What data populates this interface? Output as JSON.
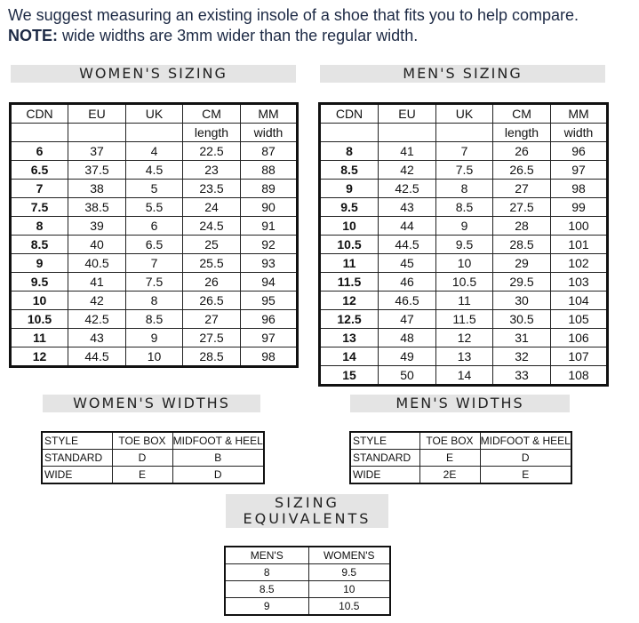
{
  "intro": {
    "line1": "We suggest measuring an existing insole of a shoe that fits you to help compare.",
    "note_label": "NOTE:",
    "note_text": "wide widths are 3mm wider than the regular width."
  },
  "womens_sizing": {
    "title": "WOMEN'S SIZING",
    "header": [
      "CDN",
      "EU",
      "UK",
      "CM",
      "MM"
    ],
    "subheader": [
      "length",
      "width"
    ],
    "rows": [
      [
        "6",
        "37",
        "4",
        "22.5",
        "87"
      ],
      [
        "6.5",
        "37.5",
        "4.5",
        "23",
        "88"
      ],
      [
        "7",
        "38",
        "5",
        "23.5",
        "89"
      ],
      [
        "7.5",
        "38.5",
        "5.5",
        "24",
        "90"
      ],
      [
        "8",
        "39",
        "6",
        "24.5",
        "91"
      ],
      [
        "8.5",
        "40",
        "6.5",
        "25",
        "92"
      ],
      [
        "9",
        "40.5",
        "7",
        "25.5",
        "93"
      ],
      [
        "9.5",
        "41",
        "7.5",
        "26",
        "94"
      ],
      [
        "10",
        "42",
        "8",
        "26.5",
        "95"
      ],
      [
        "10.5",
        "42.5",
        "8.5",
        "27",
        "96"
      ],
      [
        "11",
        "43",
        "9",
        "27.5",
        "97"
      ],
      [
        "12",
        "44.5",
        "10",
        "28.5",
        "98"
      ]
    ]
  },
  "mens_sizing": {
    "title": "MEN'S SIZING",
    "header": [
      "CDN",
      "EU",
      "UK",
      "CM",
      "MM"
    ],
    "subheader": [
      "length",
      "width"
    ],
    "rows": [
      [
        "8",
        "41",
        "7",
        "26",
        "96"
      ],
      [
        "8.5",
        "42",
        "7.5",
        "26.5",
        "97"
      ],
      [
        "9",
        "42.5",
        "8",
        "27",
        "98"
      ],
      [
        "9.5",
        "43",
        "8.5",
        "27.5",
        "99"
      ],
      [
        "10",
        "44",
        "9",
        "28",
        "100"
      ],
      [
        "10.5",
        "44.5",
        "9.5",
        "28.5",
        "101"
      ],
      [
        "11",
        "45",
        "10",
        "29",
        "102"
      ],
      [
        "11.5",
        "46",
        "10.5",
        "29.5",
        "103"
      ],
      [
        "12",
        "46.5",
        "11",
        "30",
        "104"
      ],
      [
        "12.5",
        "47",
        "11.5",
        "30.5",
        "105"
      ],
      [
        "13",
        "48",
        "12",
        "31",
        "106"
      ],
      [
        "14",
        "49",
        "13",
        "32",
        "107"
      ],
      [
        "15",
        "50",
        "14",
        "33",
        "108"
      ]
    ]
  },
  "womens_widths": {
    "title": "WOMEN'S WIDTHS",
    "header": [
      "STYLE",
      "TOE BOX",
      "MIDFOOT & HEEL"
    ],
    "rows": [
      [
        "STANDARD",
        "D",
        "B"
      ],
      [
        "WIDE",
        "E",
        "D"
      ]
    ]
  },
  "mens_widths": {
    "title": "MEN'S WIDTHS",
    "header": [
      "STYLE",
      "TOE BOX",
      "MIDFOOT & HEEL"
    ],
    "rows": [
      [
        "STANDARD",
        "E",
        "D"
      ],
      [
        "WIDE",
        "2E",
        "E"
      ]
    ]
  },
  "equivalents": {
    "title": "SIZING EQUIVALENTS",
    "header": [
      "MEN'S",
      "WOMEN'S"
    ],
    "rows": [
      [
        "8",
        "9.5"
      ],
      [
        "8.5",
        "10"
      ],
      [
        "9",
        "10.5"
      ]
    ]
  }
}
